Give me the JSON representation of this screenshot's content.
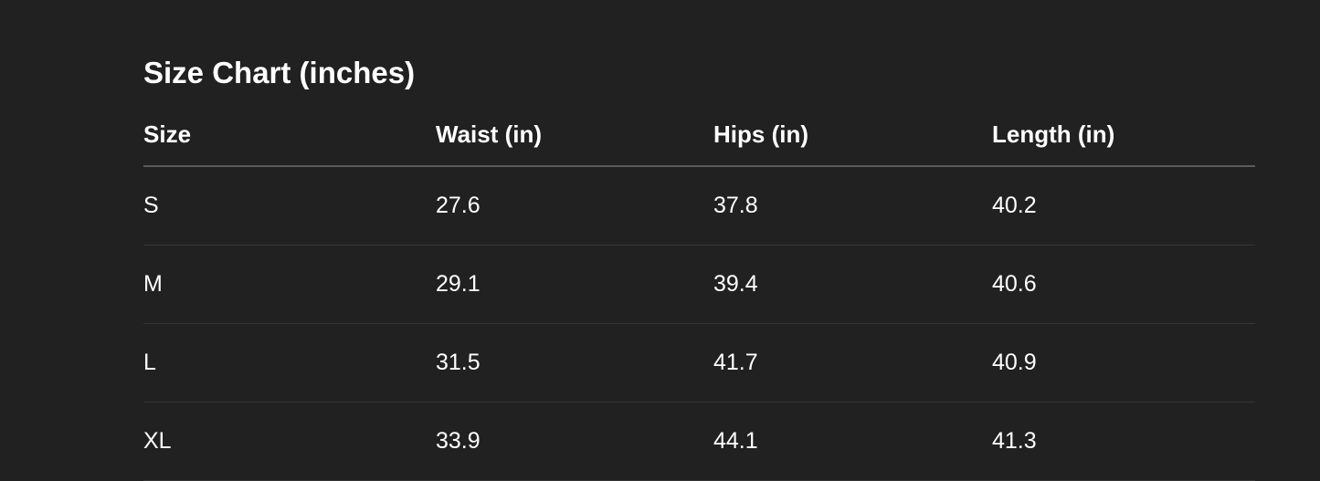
{
  "title": "Size Chart (inches)",
  "table": {
    "headers": [
      "Size",
      "Waist (in)",
      "Hips (in)",
      "Length (in)"
    ],
    "rows": [
      [
        "S",
        "27.6",
        "37.8",
        "40.2"
      ],
      [
        "M",
        "29.1",
        "39.4",
        "40.6"
      ],
      [
        "L",
        "31.5",
        "41.7",
        "40.9"
      ],
      [
        "XL",
        "33.9",
        "44.1",
        "41.3"
      ]
    ]
  },
  "colors": {
    "background": "#212121",
    "text": "#ffffff"
  }
}
